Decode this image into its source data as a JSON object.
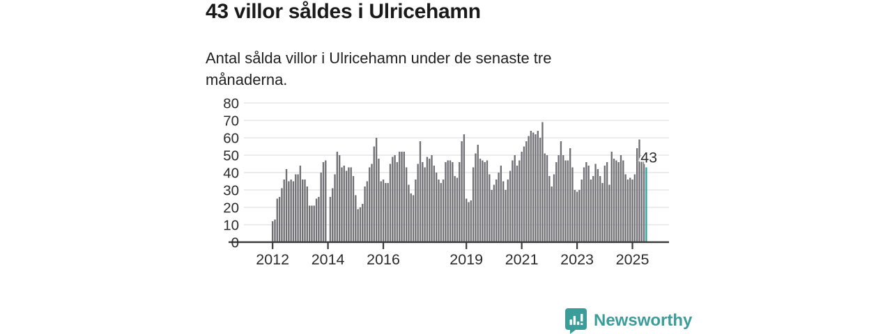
{
  "header": {
    "title": "43 villor såldes i Ulricehamn",
    "subtitle": "Antal sålda villor i Ulricehamn under de senaste tre månaderna."
  },
  "branding": {
    "name": "Newsworthy",
    "brand_color": "#3b9d99",
    "logo_icon": "bar-chart-speech-bubble-icon"
  },
  "chart_data": {
    "type": "bar",
    "title": "43 villor såldes i Ulricehamn",
    "subtitle": "Antal sålda villor i Ulricehamn under de senaste tre månaderna.",
    "frequency": "monthly",
    "x_start": "2012-01",
    "x_end": "2025-07",
    "x_tick_years": [
      2012,
      2014,
      2016,
      2019,
      2021,
      2023,
      2025
    ],
    "x_tick_labels": [
      "2012",
      "2014",
      "2016",
      "2019",
      "2021",
      "2023",
      "2025"
    ],
    "ylim": [
      0,
      80
    ],
    "y_ticks": [
      0,
      10,
      20,
      30,
      40,
      50,
      60,
      70,
      80
    ],
    "grid": true,
    "legend_position": "none",
    "bar_color": "#6f6f74",
    "grid_color": "#e0e0e3",
    "axis_color": "#3a3a3a",
    "tick_label_color": "#2b2b2b",
    "values": [
      12,
      13,
      25,
      26,
      31,
      36,
      42,
      35,
      36,
      35,
      39,
      39,
      44,
      36,
      36,
      32,
      21,
      21,
      21,
      25,
      26,
      40,
      46,
      47,
      0,
      26,
      31,
      39,
      52,
      50,
      43,
      44,
      41,
      43,
      43,
      38,
      27,
      19,
      20,
      22,
      32,
      35,
      43,
      45,
      55,
      60,
      48,
      35,
      36,
      34,
      34,
      45,
      49,
      50,
      46,
      52,
      52,
      52,
      43,
      33,
      28,
      27,
      36,
      45,
      58,
      46,
      43,
      49,
      48,
      50,
      44,
      40,
      36,
      34,
      36,
      46,
      47,
      47,
      46,
      38,
      37,
      46,
      58,
      62,
      25,
      23,
      24,
      43,
      51,
      56,
      48,
      47,
      46,
      47,
      39,
      30,
      33,
      36,
      40,
      44,
      35,
      30,
      36,
      41,
      47,
      50,
      44,
      47,
      52,
      55,
      58,
      61,
      64,
      63,
      62,
      64,
      60,
      69,
      51,
      50,
      38,
      32,
      39,
      46,
      50,
      58,
      50,
      47,
      47,
      54,
      43,
      30,
      29,
      30,
      36,
      43,
      46,
      44,
      36,
      38,
      45,
      42,
      38,
      34,
      44,
      46,
      33,
      52,
      48,
      47,
      46,
      50,
      47,
      39,
      36,
      37,
      36,
      39,
      54,
      59,
      50,
      47,
      43
    ],
    "highlight": {
      "index": 162,
      "value": 43,
      "label": "43",
      "color": "#29a4a1"
    }
  }
}
